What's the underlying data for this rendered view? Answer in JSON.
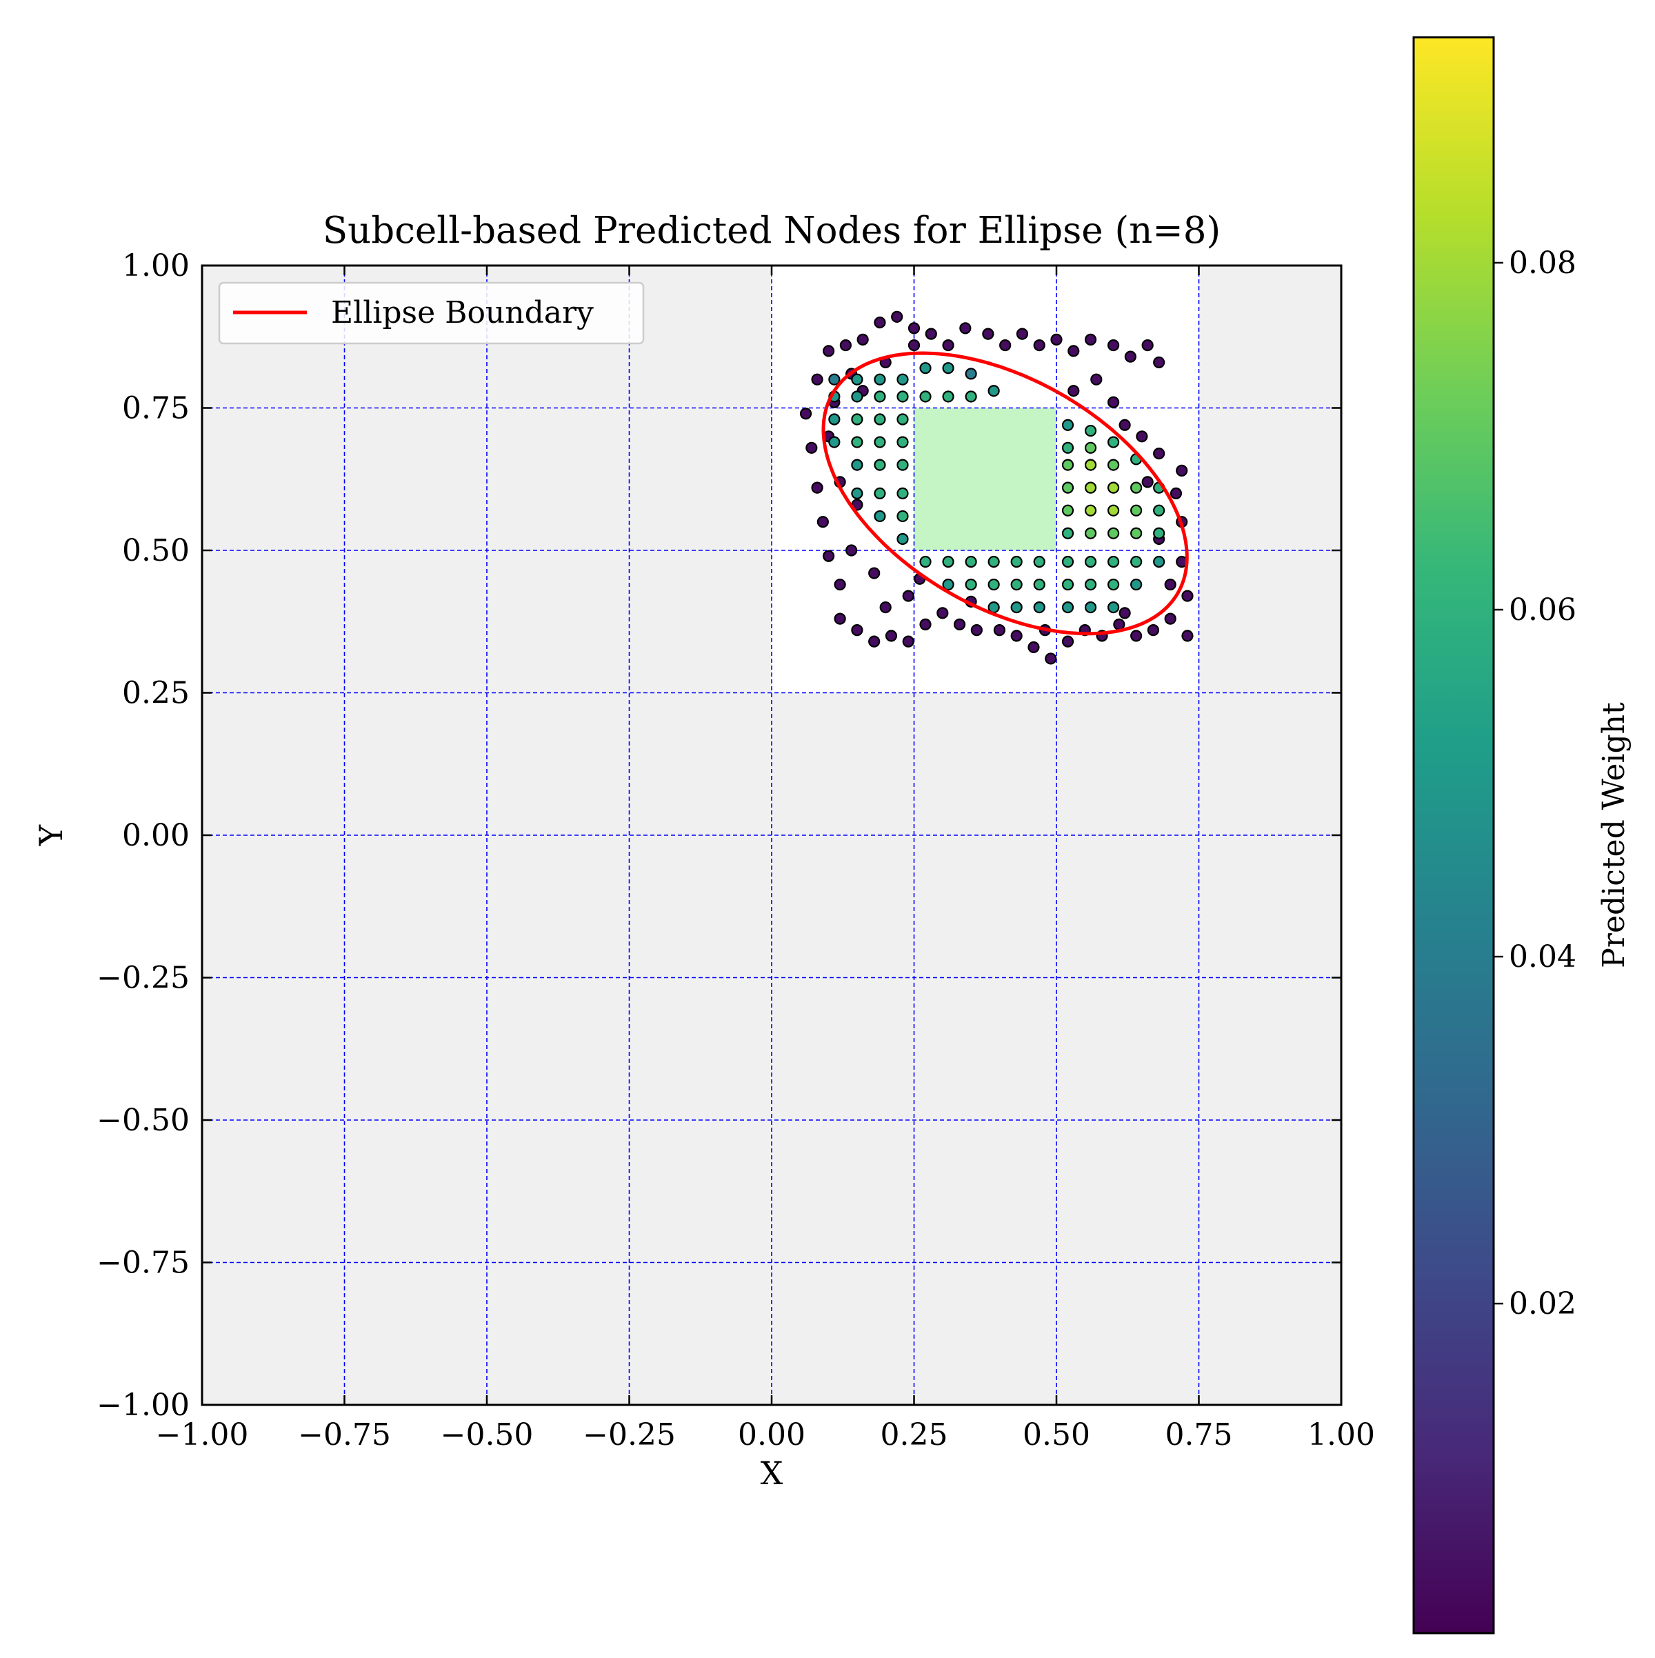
{
  "chart_data": {
    "type": "scatter",
    "title": "Subcell-based Predicted Nodes for Ellipse (n=8)",
    "xlabel": "X",
    "ylabel": "Y",
    "xlim": [
      -1.0,
      1.0
    ],
    "ylim": [
      -1.0,
      1.0
    ],
    "xticks": [
      "−1.00",
      "−0.75",
      "−0.50",
      "−0.25",
      "0.00",
      "0.25",
      "0.50",
      "0.75",
      "1.00"
    ],
    "yticks": [
      "−1.00",
      "−0.75",
      "−0.50",
      "−0.25",
      "0.00",
      "0.25",
      "0.50",
      "0.75",
      "1.00"
    ],
    "grid": true,
    "grid_lines": [
      -0.75,
      -0.5,
      -0.25,
      0.0,
      0.25,
      0.5,
      0.75
    ],
    "background_color": "#f0f0f0",
    "grid_color": "#0000ff",
    "legend": {
      "position": "top-left",
      "entries": [
        {
          "label": "Ellipse Boundary",
          "color": "#ff0000"
        }
      ]
    },
    "ellipse": {
      "center": [
        0.41,
        0.6
      ],
      "semi_axes": [
        0.35,
        0.2
      ],
      "angle_deg": -30,
      "color": "#ff0000"
    },
    "white_cells": [
      [
        0.0,
        0.25,
        0.25,
        1.0
      ],
      [
        0.25,
        0.5,
        0.25,
        1.0
      ],
      [
        0.5,
        0.75,
        0.25,
        1.0
      ]
    ],
    "inner_cell": {
      "x": [
        0.25,
        0.5
      ],
      "y": [
        0.5,
        0.75
      ],
      "color": "#c5f5c5"
    },
    "scatter": {
      "marker_edge_color": "#000000",
      "points": [
        [
          0.13,
          0.86,
          0.004
        ],
        [
          0.16,
          0.87,
          0.004
        ],
        [
          0.19,
          0.9,
          0.004
        ],
        [
          0.22,
          0.91,
          0.004
        ],
        [
          0.25,
          0.89,
          0.004
        ],
        [
          0.28,
          0.88,
          0.004
        ],
        [
          0.31,
          0.86,
          0.004
        ],
        [
          0.34,
          0.89,
          0.004
        ],
        [
          0.38,
          0.88,
          0.004
        ],
        [
          0.41,
          0.86,
          0.004
        ],
        [
          0.44,
          0.88,
          0.004
        ],
        [
          0.47,
          0.86,
          0.004
        ],
        [
          0.5,
          0.87,
          0.004
        ],
        [
          0.53,
          0.85,
          0.004
        ],
        [
          0.56,
          0.87,
          0.004
        ],
        [
          0.6,
          0.86,
          0.004
        ],
        [
          0.63,
          0.84,
          0.004
        ],
        [
          0.66,
          0.86,
          0.004
        ],
        [
          0.68,
          0.83,
          0.004
        ],
        [
          0.1,
          0.85,
          0.004
        ],
        [
          0.08,
          0.8,
          0.004
        ],
        [
          0.06,
          0.74,
          0.004
        ],
        [
          0.07,
          0.68,
          0.004
        ],
        [
          0.08,
          0.61,
          0.004
        ],
        [
          0.09,
          0.55,
          0.004
        ],
        [
          0.1,
          0.49,
          0.004
        ],
        [
          0.12,
          0.44,
          0.004
        ],
        [
          0.12,
          0.38,
          0.004
        ],
        [
          0.15,
          0.36,
          0.004
        ],
        [
          0.18,
          0.34,
          0.004
        ],
        [
          0.21,
          0.35,
          0.004
        ],
        [
          0.24,
          0.34,
          0.004
        ],
        [
          0.27,
          0.37,
          0.004
        ],
        [
          0.3,
          0.39,
          0.004
        ],
        [
          0.33,
          0.37,
          0.004
        ],
        [
          0.36,
          0.36,
          0.004
        ],
        [
          0.4,
          0.36,
          0.004
        ],
        [
          0.43,
          0.35,
          0.004
        ],
        [
          0.46,
          0.33,
          0.004
        ],
        [
          0.49,
          0.31,
          0.004
        ],
        [
          0.52,
          0.34,
          0.004
        ],
        [
          0.55,
          0.36,
          0.004
        ],
        [
          0.58,
          0.35,
          0.004
        ],
        [
          0.61,
          0.37,
          0.004
        ],
        [
          0.64,
          0.35,
          0.004
        ],
        [
          0.67,
          0.36,
          0.004
        ],
        [
          0.7,
          0.38,
          0.004
        ],
        [
          0.73,
          0.35,
          0.004
        ],
        [
          0.73,
          0.42,
          0.004
        ],
        [
          0.72,
          0.48,
          0.004
        ],
        [
          0.72,
          0.55,
          0.004
        ],
        [
          0.71,
          0.6,
          0.004
        ],
        [
          0.72,
          0.64,
          0.004
        ],
        [
          0.68,
          0.67,
          0.004
        ],
        [
          0.65,
          0.7,
          0.004
        ],
        [
          0.62,
          0.72,
          0.004
        ],
        [
          0.6,
          0.76,
          0.004
        ],
        [
          0.57,
          0.8,
          0.004
        ],
        [
          0.53,
          0.78,
          0.004
        ],
        [
          0.11,
          0.76,
          0.004
        ],
        [
          0.14,
          0.81,
          0.004
        ],
        [
          0.2,
          0.83,
          0.004
        ],
        [
          0.25,
          0.86,
          0.004
        ],
        [
          0.16,
          0.78,
          0.004
        ],
        [
          0.1,
          0.7,
          0.004
        ],
        [
          0.12,
          0.62,
          0.004
        ],
        [
          0.15,
          0.58,
          0.004
        ],
        [
          0.14,
          0.5,
          0.004
        ],
        [
          0.18,
          0.46,
          0.004
        ],
        [
          0.2,
          0.4,
          0.004
        ],
        [
          0.24,
          0.42,
          0.004
        ],
        [
          0.26,
          0.45,
          0.004
        ],
        [
          0.35,
          0.41,
          0.004
        ],
        [
          0.48,
          0.36,
          0.004
        ],
        [
          0.62,
          0.39,
          0.004
        ],
        [
          0.7,
          0.44,
          0.004
        ],
        [
          0.68,
          0.52,
          0.004
        ],
        [
          0.66,
          0.62,
          0.004
        ],
        [
          0.11,
          0.8,
          0.04
        ],
        [
          0.15,
          0.8,
          0.05
        ],
        [
          0.19,
          0.8,
          0.05
        ],
        [
          0.23,
          0.8,
          0.05
        ],
        [
          0.27,
          0.82,
          0.05
        ],
        [
          0.31,
          0.82,
          0.05
        ],
        [
          0.35,
          0.81,
          0.04
        ],
        [
          0.11,
          0.77,
          0.05
        ],
        [
          0.15,
          0.77,
          0.05
        ],
        [
          0.19,
          0.77,
          0.06
        ],
        [
          0.23,
          0.77,
          0.06
        ],
        [
          0.27,
          0.77,
          0.06
        ],
        [
          0.31,
          0.77,
          0.06
        ],
        [
          0.35,
          0.77,
          0.06
        ],
        [
          0.39,
          0.78,
          0.05
        ],
        [
          0.11,
          0.73,
          0.05
        ],
        [
          0.15,
          0.73,
          0.06
        ],
        [
          0.19,
          0.73,
          0.06
        ],
        [
          0.23,
          0.73,
          0.06
        ],
        [
          0.11,
          0.69,
          0.05
        ],
        [
          0.15,
          0.69,
          0.06
        ],
        [
          0.19,
          0.69,
          0.06
        ],
        [
          0.23,
          0.69,
          0.06
        ],
        [
          0.15,
          0.65,
          0.05
        ],
        [
          0.19,
          0.65,
          0.06
        ],
        [
          0.23,
          0.65,
          0.06
        ],
        [
          0.15,
          0.6,
          0.05
        ],
        [
          0.19,
          0.6,
          0.06
        ],
        [
          0.23,
          0.6,
          0.06
        ],
        [
          0.19,
          0.56,
          0.05
        ],
        [
          0.23,
          0.56,
          0.06
        ],
        [
          0.23,
          0.52,
          0.05
        ],
        [
          0.52,
          0.72,
          0.05
        ],
        [
          0.56,
          0.71,
          0.06
        ],
        [
          0.52,
          0.68,
          0.06
        ],
        [
          0.56,
          0.68,
          0.07
        ],
        [
          0.6,
          0.69,
          0.06
        ],
        [
          0.52,
          0.65,
          0.07
        ],
        [
          0.56,
          0.65,
          0.08
        ],
        [
          0.6,
          0.65,
          0.07
        ],
        [
          0.64,
          0.66,
          0.06
        ],
        [
          0.52,
          0.61,
          0.07
        ],
        [
          0.56,
          0.61,
          0.08
        ],
        [
          0.6,
          0.61,
          0.08
        ],
        [
          0.64,
          0.61,
          0.07
        ],
        [
          0.68,
          0.61,
          0.06
        ],
        [
          0.52,
          0.57,
          0.07
        ],
        [
          0.56,
          0.57,
          0.08
        ],
        [
          0.6,
          0.57,
          0.08
        ],
        [
          0.64,
          0.57,
          0.07
        ],
        [
          0.68,
          0.57,
          0.06
        ],
        [
          0.52,
          0.53,
          0.06
        ],
        [
          0.56,
          0.53,
          0.07
        ],
        [
          0.6,
          0.53,
          0.07
        ],
        [
          0.64,
          0.53,
          0.07
        ],
        [
          0.68,
          0.53,
          0.06
        ],
        [
          0.27,
          0.48,
          0.06
        ],
        [
          0.31,
          0.48,
          0.06
        ],
        [
          0.35,
          0.48,
          0.06
        ],
        [
          0.39,
          0.48,
          0.06
        ],
        [
          0.43,
          0.48,
          0.06
        ],
        [
          0.47,
          0.48,
          0.06
        ],
        [
          0.52,
          0.48,
          0.06
        ],
        [
          0.56,
          0.48,
          0.06
        ],
        [
          0.6,
          0.48,
          0.06
        ],
        [
          0.64,
          0.48,
          0.06
        ],
        [
          0.68,
          0.48,
          0.05
        ],
        [
          0.31,
          0.44,
          0.05
        ],
        [
          0.35,
          0.44,
          0.06
        ],
        [
          0.39,
          0.44,
          0.06
        ],
        [
          0.43,
          0.44,
          0.06
        ],
        [
          0.47,
          0.44,
          0.06
        ],
        [
          0.52,
          0.44,
          0.06
        ],
        [
          0.56,
          0.44,
          0.06
        ],
        [
          0.6,
          0.44,
          0.06
        ],
        [
          0.64,
          0.44,
          0.05
        ],
        [
          0.39,
          0.4,
          0.05
        ],
        [
          0.43,
          0.4,
          0.05
        ],
        [
          0.47,
          0.4,
          0.05
        ],
        [
          0.52,
          0.4,
          0.05
        ],
        [
          0.56,
          0.4,
          0.05
        ],
        [
          0.6,
          0.4,
          0.05
        ]
      ]
    },
    "colorbar": {
      "label": "Predicted Weight",
      "min": 0.001,
      "max": 0.093,
      "ticks": [
        0.02,
        0.04,
        0.06,
        0.08
      ],
      "tick_labels": [
        "0.02",
        "0.04",
        "0.06",
        "0.08"
      ],
      "colormap": "viridis",
      "colormap_stops": [
        "#440154",
        "#482878",
        "#3e4989",
        "#31688e",
        "#26828e",
        "#1f9e89",
        "#35b779",
        "#6ece58",
        "#b5de2b",
        "#fde725"
      ]
    }
  }
}
